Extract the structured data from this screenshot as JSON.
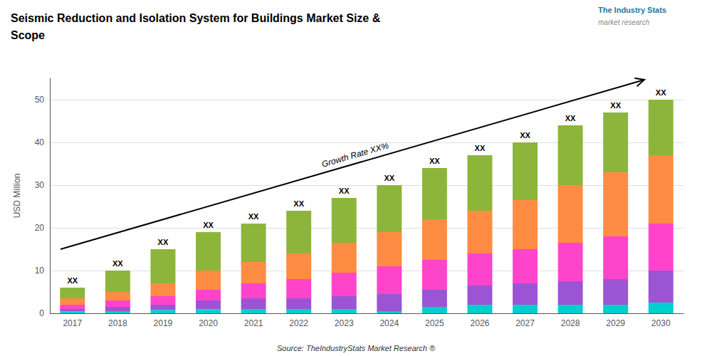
{
  "chart_data": {
    "type": "bar",
    "stacked": true,
    "title": "Seismic Reduction and Isolation System for Buildings Market Size &\nScope",
    "ylabel": "USD Million",
    "categories": [
      "2017",
      "2018",
      "2019",
      "2020",
      "2021",
      "2022",
      "2023",
      "2024",
      "2025",
      "2026",
      "2027",
      "2028",
      "2029",
      "2030"
    ],
    "series": [
      {
        "color": "#00cfcf",
        "values": [
          0.4,
          0.5,
          0.8,
          0.9,
          1.0,
          1.0,
          1.0,
          0.5,
          1.5,
          2.0,
          2.0,
          2.0,
          2.0,
          2.5
        ]
      },
      {
        "color": "#9b55d4",
        "values": [
          0.6,
          1.0,
          1.2,
          2.1,
          2.5,
          2.5,
          3.0,
          4.0,
          4.0,
          4.5,
          5.0,
          5.5,
          6.0,
          7.5
        ]
      },
      {
        "color": "#ff44cc",
        "values": [
          1.0,
          1.5,
          2.0,
          2.5,
          3.5,
          4.5,
          5.5,
          6.5,
          7.0,
          7.5,
          8.0,
          9.0,
          10.0,
          11.0
        ]
      },
      {
        "color": "#ff8c42",
        "values": [
          1.5,
          2.0,
          3.0,
          4.5,
          5.0,
          6.0,
          7.0,
          8.0,
          9.5,
          10.0,
          11.5,
          13.5,
          15.0,
          16.0
        ]
      },
      {
        "color": "#8db53b",
        "values": [
          2.5,
          5.0,
          8.0,
          9.0,
          9.0,
          10.0,
          10.5,
          11.0,
          12.0,
          13.0,
          13.5,
          14.0,
          14.0,
          13.0
        ]
      }
    ],
    "ylim": [
      0,
      55
    ],
    "yticks": [
      0,
      10,
      20,
      30,
      40,
      50
    ],
    "grid": true,
    "annotations": [
      {
        "text": "XX",
        "x": "2017"
      },
      {
        "text": "XX",
        "x": "2018"
      },
      {
        "text": "XX",
        "x": "2019"
      },
      {
        "text": "XX",
        "x": "2020"
      },
      {
        "text": "XX",
        "x": "2021"
      },
      {
        "text": "XX",
        "x": "2022"
      },
      {
        "text": "XX",
        "x": "2023"
      },
      {
        "text": "XX",
        "x": "2024"
      },
      {
        "text": "XX",
        "x": "2025"
      },
      {
        "text": "XX",
        "x": "2026"
      },
      {
        "text": "XX",
        "x": "2027"
      },
      {
        "text": "XX",
        "x": "2028"
      },
      {
        "text": "XX",
        "x": "2029"
      },
      {
        "text": "XX",
        "x": "2030"
      },
      {
        "text": "Growth Rate XX%"
      },
      {
        "text": "The Industry Stats"
      },
      {
        "text": "market research"
      },
      {
        "text": "Source: TheIndustryStats Market Research ®"
      }
    ]
  }
}
